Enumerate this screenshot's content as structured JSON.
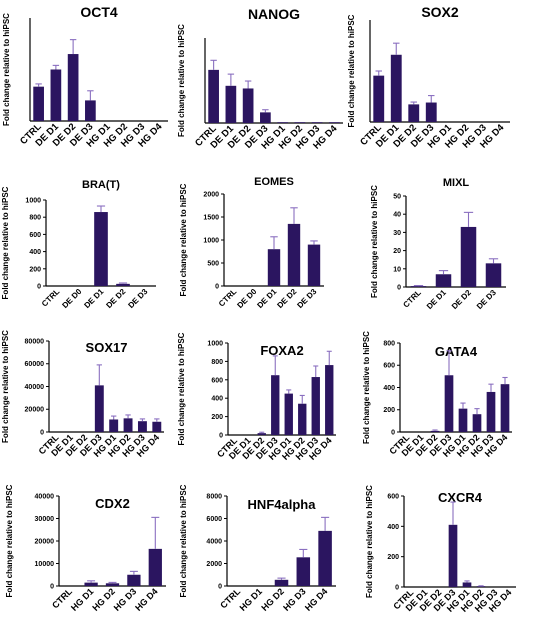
{
  "colors": {
    "bar": "#2b1560",
    "error": "#8a6fc0",
    "axis": "#000000"
  },
  "chart_data": [
    {
      "type": "bar",
      "title": "OCT4",
      "ylabel": "Fold change relative to hiPSC",
      "categories": [
        "CTRL",
        "DE D1",
        "DE D2",
        "DE D3",
        "HG D1",
        "HG D2",
        "HG D3",
        "HG D4"
      ],
      "values": [
        1.0,
        1.5,
        1.95,
        0.6,
        0,
        0,
        0,
        0
      ],
      "errors": [
        0.08,
        0.12,
        0.42,
        0.28,
        0,
        0,
        0,
        0
      ],
      "ylim": [
        0,
        3
      ],
      "yticks": [],
      "grid": false
    },
    {
      "type": "bar",
      "title": "NANOG",
      "ylabel": "Fold change relative to hiPSC",
      "categories": [
        "CTRL",
        "DE D1",
        "DE D2",
        "DE D3",
        "HG D1",
        "HG D2",
        "HG D3",
        "HG D4"
      ],
      "values": [
        1.0,
        0.7,
        0.65,
        0.2,
        0.01,
        0.01,
        0.01,
        0.01
      ],
      "errors": [
        0.18,
        0.22,
        0.14,
        0.05,
        0,
        0,
        0,
        0
      ],
      "ylim": [
        0,
        1.6
      ],
      "yticks": [],
      "grid": false
    },
    {
      "type": "bar",
      "title": "SOX2",
      "ylabel": "Fold change relative to hiPSC",
      "categories": [
        "CTRL",
        "DE D1",
        "DE D2",
        "DE D3",
        "HG D1",
        "HG D2",
        "HG D3",
        "HG D4"
      ],
      "values": [
        1.0,
        1.45,
        0.38,
        0.42,
        0,
        0,
        0,
        0
      ],
      "errors": [
        0.1,
        0.25,
        0.05,
        0.15,
        0,
        0,
        0,
        0
      ],
      "ylim": [
        0,
        2.2
      ],
      "yticks": [],
      "grid": false
    },
    {
      "type": "bar",
      "title": "BRA(T)",
      "ylabel": "Fold change relative to hiPSC",
      "categories": [
        "CTRL",
        "DE D0",
        "DE D1",
        "DE D2",
        "DE D3"
      ],
      "values": [
        0,
        0,
        860,
        25,
        0
      ],
      "errors": [
        0,
        0,
        70,
        10,
        0
      ],
      "ylim": [
        0,
        1000
      ],
      "yticks": [
        0,
        200,
        400,
        600,
        800,
        1000
      ],
      "grid": false
    },
    {
      "type": "bar",
      "title": "EOMES",
      "ylabel": "Fold change relative to hiPSC",
      "categories": [
        "CTRL",
        "DE D0",
        "DE D1",
        "DE D2",
        "DE D3"
      ],
      "values": [
        0,
        0,
        800,
        1350,
        900
      ],
      "errors": [
        0,
        0,
        270,
        350,
        80
      ],
      "ylim": [
        0,
        2000
      ],
      "yticks": [
        0,
        500,
        1000,
        1500,
        2000
      ],
      "grid": false
    },
    {
      "type": "bar",
      "title": "MIXL",
      "ylabel": "Fold change relative to hiPSC",
      "categories": [
        "CTRL",
        "DE D1",
        "DE D2",
        "DE D3"
      ],
      "values": [
        0.5,
        7,
        33,
        13
      ],
      "errors": [
        0.3,
        2,
        8,
        2.5
      ],
      "ylim": [
        0,
        50
      ],
      "yticks": [
        0,
        10,
        20,
        30,
        40,
        50
      ],
      "grid": false
    },
    {
      "type": "bar",
      "title": "SOX17",
      "ylabel": "Fold change relative to hiPSC",
      "categories": [
        "CTRL",
        "DE D1",
        "DE D2",
        "DE D3",
        "HG D1",
        "HG D2",
        "HG D3",
        "HG D4"
      ],
      "values": [
        0,
        0,
        0,
        41000,
        11000,
        12000,
        9500,
        9000
      ],
      "errors": [
        0,
        0,
        0,
        18000,
        3000,
        3000,
        2000,
        2500
      ],
      "ylim": [
        0,
        80000
      ],
      "yticks": [
        0,
        20000,
        40000,
        60000,
        80000
      ],
      "grid": false
    },
    {
      "type": "bar",
      "title": "FOXA2",
      "ylabel": "Fold change relative to hiPSC",
      "categories": [
        "CTRL",
        "DE D1",
        "DE D2",
        "DE D3",
        "HG D1",
        "HG D2",
        "HG D3",
        "HG D4"
      ],
      "values": [
        0,
        0,
        20,
        650,
        450,
        340,
        630,
        760
      ],
      "errors": [
        0,
        0,
        10,
        210,
        40,
        90,
        120,
        150
      ],
      "ylim": [
        0,
        1000
      ],
      "yticks": [
        0,
        200,
        400,
        600,
        800,
        1000
      ],
      "grid": false
    },
    {
      "type": "bar",
      "title": "GATA4",
      "ylabel": "Fold change relative to hiPSC",
      "categories": [
        "CTRL",
        "DE D1",
        "DE D2",
        "DE D3",
        "HG D1",
        "HG D2",
        "HG D3",
        "HG D4"
      ],
      "values": [
        0,
        0,
        10,
        510,
        210,
        160,
        360,
        430
      ],
      "errors": [
        0,
        0,
        8,
        220,
        50,
        50,
        70,
        60
      ],
      "ylim": [
        0,
        800
      ],
      "yticks": [
        0,
        200,
        400,
        600,
        800
      ],
      "grid": false
    },
    {
      "type": "bar",
      "title": "CDX2",
      "ylabel": "Fold change relative to hiPSC",
      "categories": [
        "CTRL",
        "HG D1",
        "HG D2",
        "HG D3",
        "HG D4"
      ],
      "values": [
        0,
        1500,
        1200,
        5000,
        16500
      ],
      "errors": [
        0,
        800,
        400,
        1500,
        14000
      ],
      "ylim": [
        0,
        40000
      ],
      "yticks": [
        0,
        10000,
        20000,
        30000,
        40000
      ],
      "grid": false
    },
    {
      "type": "bar",
      "title": "HNF4alpha",
      "ylabel": "Fold change relative to hiPSC",
      "categories": [
        "CTRL",
        "HG D1",
        "HG D2",
        "HG D3",
        "HG D4"
      ],
      "values": [
        0,
        0,
        550,
        2550,
        4900
      ],
      "errors": [
        0,
        0,
        150,
        700,
        1200
      ],
      "ylim": [
        0,
        8000
      ],
      "yticks": [
        0,
        2000,
        4000,
        6000,
        8000
      ],
      "grid": false
    },
    {
      "type": "bar",
      "title": "CXCR4",
      "ylabel": "Fold change relative to hiPSC",
      "categories": [
        "CTRL",
        "DE D1",
        "DE D2",
        "DE D3",
        "HG D1",
        "HG D2",
        "HG D3",
        "HG D4"
      ],
      "values": [
        0,
        0,
        0,
        410,
        30,
        5,
        0,
        0
      ],
      "errors": [
        0,
        0,
        0,
        150,
        10,
        3,
        0,
        0
      ],
      "ylim": [
        0,
        600
      ],
      "yticks": [
        0,
        200,
        400,
        600
      ],
      "grid": false
    }
  ]
}
